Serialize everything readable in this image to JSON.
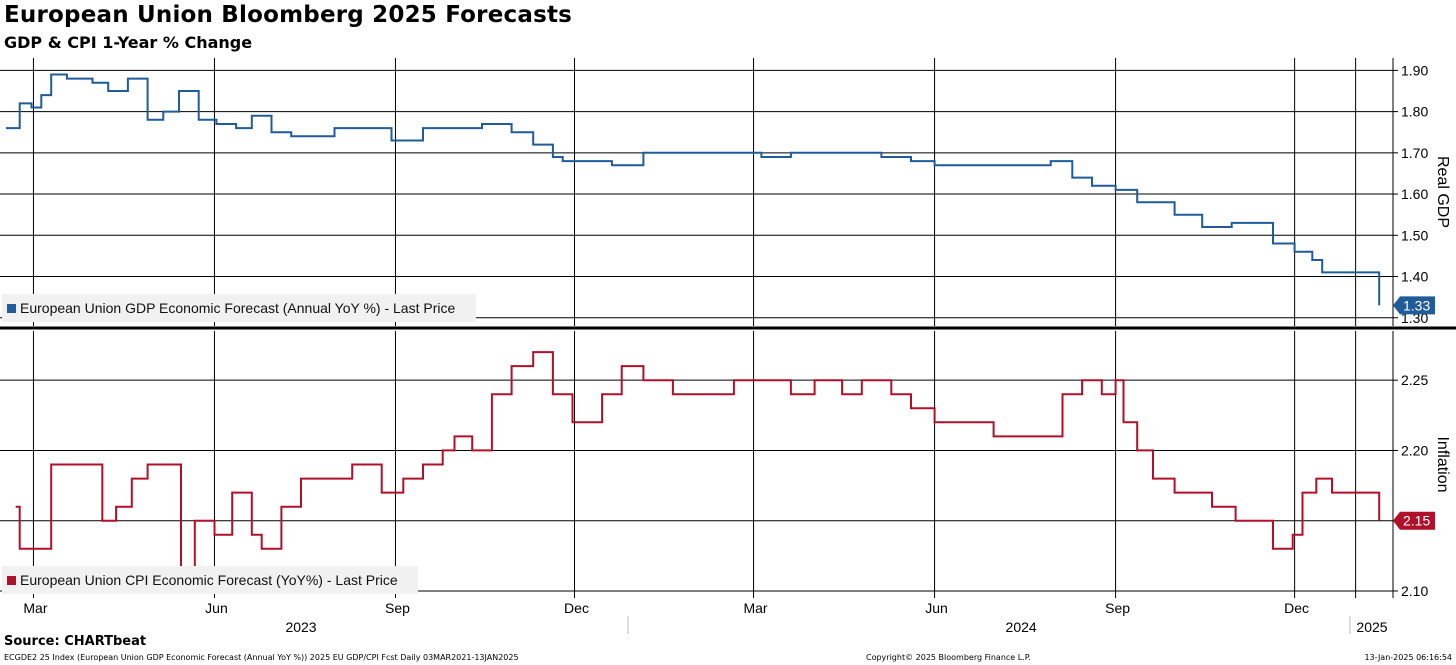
{
  "header": {
    "title": "European Union Bloomberg 2025 Forecasts",
    "subtitle": "GDP & CPI 1-Year % Change"
  },
  "footer": {
    "source": "Source: CHARTbeat",
    "left_note": "ECGDE2 25 Index (European Union GDP Economic Forecast (Annual YoY %)) 2025 EU GDP/CPI Fcst  Daily 03MAR2021-13JAN2025",
    "copyright": "Copyright© 2025 Bloomberg Finance L.P.",
    "timestamp": "13-Jan-2025 06:16:54"
  },
  "colors": {
    "gdp": "#1f5c99",
    "cpi": "#b0102a",
    "grid": "#000000"
  },
  "chart_data": [
    {
      "type": "line",
      "panel": "top",
      "ylabel": "Real GDP",
      "ylim": [
        1.28,
        1.93
      ],
      "yticks": [
        1.9,
        1.8,
        1.7,
        1.6,
        1.5,
        1.4,
        1.3
      ],
      "ytick_labels": [
        "1.90",
        "1.80",
        "1.70",
        "1.60",
        "1.50",
        "1.40",
        "1.30"
      ],
      "last_value_label": "1.33",
      "legend": "European Union GDP Economic Forecast (Annual YoY %) - Last Price",
      "legend_placement": "bottom-left",
      "grid": true,
      "series": [
        {
          "name": "European Union GDP Economic Forecast (Annual YoY %) - Last Price",
          "x": [
            "2023-02-15",
            "2023-02-22",
            "2023-02-28",
            "2023-03-05",
            "2023-03-10",
            "2023-03-18",
            "2023-03-24",
            "2023-03-31",
            "2023-04-08",
            "2023-04-18",
            "2023-04-28",
            "2023-05-06",
            "2023-05-14",
            "2023-05-24",
            "2023-06-02",
            "2023-06-12",
            "2023-06-20",
            "2023-06-30",
            "2023-07-10",
            "2023-07-20",
            "2023-08-01",
            "2023-08-15",
            "2023-08-30",
            "2023-09-15",
            "2023-10-01",
            "2023-10-15",
            "2023-10-30",
            "2023-11-10",
            "2023-11-20",
            "2023-11-25",
            "2023-12-05",
            "2023-12-20",
            "2024-01-05",
            "2024-01-20",
            "2024-02-05",
            "2024-02-20",
            "2024-03-05",
            "2024-03-20",
            "2024-04-05",
            "2024-04-20",
            "2024-05-05",
            "2024-05-20",
            "2024-06-01",
            "2024-06-15",
            "2024-06-30",
            "2024-07-15",
            "2024-07-30",
            "2024-08-10",
            "2024-08-20",
            "2024-09-01",
            "2024-09-12",
            "2024-09-20",
            "2024-10-01",
            "2024-10-15",
            "2024-10-30",
            "2024-11-10",
            "2024-11-20",
            "2024-12-01",
            "2024-12-10",
            "2024-12-15",
            "2024-12-25",
            "2025-01-13"
          ],
          "values": [
            1.76,
            1.82,
            1.81,
            1.84,
            1.89,
            1.88,
            1.88,
            1.87,
            1.85,
            1.88,
            1.78,
            1.8,
            1.85,
            1.78,
            1.77,
            1.76,
            1.79,
            1.75,
            1.74,
            1.74,
            1.76,
            1.76,
            1.73,
            1.76,
            1.76,
            1.77,
            1.75,
            1.72,
            1.69,
            1.68,
            1.68,
            1.67,
            1.7,
            1.7,
            1.7,
            1.7,
            1.69,
            1.7,
            1.7,
            1.7,
            1.69,
            1.68,
            1.67,
            1.67,
            1.67,
            1.67,
            1.68,
            1.64,
            1.62,
            1.61,
            1.58,
            1.58,
            1.55,
            1.52,
            1.53,
            1.53,
            1.48,
            1.46,
            1.44,
            1.41,
            1.41,
            1.33
          ]
        }
      ]
    },
    {
      "type": "line",
      "panel": "bottom",
      "ylabel": "Inflation",
      "ylim": [
        2.095,
        2.285
      ],
      "yticks": [
        2.25,
        2.2,
        2.15,
        2.1
      ],
      "ytick_labels": [
        "2.25",
        "2.20",
        "2.15",
        "2.10"
      ],
      "last_value_label": "2.15",
      "legend": "European Union CPI Economic Forecast (YoY%) - Last Price",
      "legend_placement": "bottom-left",
      "grid": true,
      "series": [
        {
          "name": "European Union CPI Economic Forecast (YoY%) - Last Price",
          "x": [
            "2023-02-20",
            "2023-02-22",
            "2023-03-01",
            "2023-03-05",
            "2023-03-10",
            "2023-03-20",
            "2023-03-28",
            "2023-04-05",
            "2023-04-12",
            "2023-04-20",
            "2023-04-28",
            "2023-05-05",
            "2023-05-10",
            "2023-05-15",
            "2023-05-22",
            "2023-06-01",
            "2023-06-10",
            "2023-06-20",
            "2023-06-25",
            "2023-07-05",
            "2023-07-15",
            "2023-07-25",
            "2023-08-10",
            "2023-08-25",
            "2023-09-05",
            "2023-09-15",
            "2023-09-25",
            "2023-10-01",
            "2023-10-10",
            "2023-10-20",
            "2023-10-30",
            "2023-11-05",
            "2023-11-10",
            "2023-11-20",
            "2023-11-30",
            "2023-12-05",
            "2023-12-15",
            "2023-12-25",
            "2024-01-05",
            "2024-01-20",
            "2024-02-05",
            "2024-02-20",
            "2024-03-01",
            "2024-03-10",
            "2024-03-20",
            "2024-04-01",
            "2024-04-15",
            "2024-04-25",
            "2024-05-10",
            "2024-05-20",
            "2024-06-01",
            "2024-06-15",
            "2024-07-01",
            "2024-07-15",
            "2024-07-30",
            "2024-08-05",
            "2024-08-15",
            "2024-08-25",
            "2024-09-01",
            "2024-09-05",
            "2024-09-12",
            "2024-09-20",
            "2024-10-01",
            "2024-10-10",
            "2024-10-20",
            "2024-11-01",
            "2024-11-10",
            "2024-11-20",
            "2024-11-30",
            "2024-12-05",
            "2024-12-12",
            "2024-12-20",
            "2025-01-13"
          ],
          "values": [
            2.16,
            2.13,
            2.13,
            2.13,
            2.19,
            2.19,
            2.19,
            2.15,
            2.16,
            2.18,
            2.19,
            2.19,
            2.19,
            2.11,
            2.15,
            2.14,
            2.17,
            2.14,
            2.13,
            2.16,
            2.18,
            2.18,
            2.19,
            2.17,
            2.18,
            2.19,
            2.2,
            2.21,
            2.2,
            2.24,
            2.26,
            2.26,
            2.27,
            2.24,
            2.22,
            2.22,
            2.24,
            2.26,
            2.25,
            2.24,
            2.24,
            2.25,
            2.25,
            2.25,
            2.24,
            2.25,
            2.24,
            2.25,
            2.24,
            2.23,
            2.22,
            2.22,
            2.21,
            2.21,
            2.21,
            2.24,
            2.25,
            2.24,
            2.25,
            2.22,
            2.2,
            2.18,
            2.17,
            2.17,
            2.16,
            2.15,
            2.15,
            2.13,
            2.14,
            2.17,
            2.18,
            2.17,
            2.15
          ]
        }
      ]
    }
  ],
  "xaxis": {
    "month_ticks": [
      {
        "label": "Mar",
        "date": "2023-03-01"
      },
      {
        "label": "Jun",
        "date": "2023-06-01"
      },
      {
        "label": "Sep",
        "date": "2023-09-01"
      },
      {
        "label": "Dec",
        "date": "2023-12-01"
      },
      {
        "label": "Mar",
        "date": "2024-03-01"
      },
      {
        "label": "Jun",
        "date": "2024-06-01"
      },
      {
        "label": "Sep",
        "date": "2024-09-01"
      },
      {
        "label": "Dec",
        "date": "2024-12-01"
      }
    ],
    "year_labels": [
      {
        "label": "2023",
        "date": "2023-07-15"
      },
      {
        "label": "2024",
        "date": "2024-07-15"
      },
      {
        "label": "2025",
        "date": "2025-01-08"
      }
    ]
  }
}
